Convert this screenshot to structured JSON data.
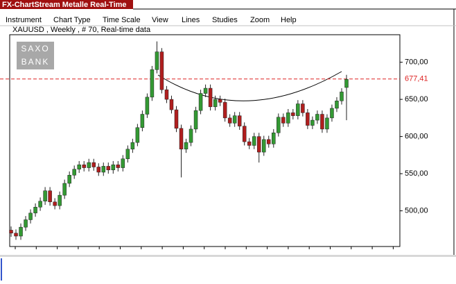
{
  "window": {
    "title": "FX-ChartStream Metalle Real-Time",
    "menu": [
      "Instrument",
      "Chart Type",
      "Time Scale",
      "View",
      "Lines",
      "Studies",
      "Zoom",
      "Help"
    ]
  },
  "logo": [
    "SAXO",
    "BANK"
  ],
  "chart_data": {
    "type": "candlestick",
    "subtitle": "XAUUSD , Weekly , # 70, Real-time data",
    "open": [
      474,
      470,
      466,
      478,
      488,
      497,
      505,
      513,
      527,
      512,
      507,
      521,
      537,
      548,
      556,
      562,
      558,
      565,
      559,
      552,
      560,
      555,
      562,
      558,
      570,
      583,
      592,
      612,
      630,
      653,
      690,
      714,
      663,
      650,
      636,
      611,
      583,
      592,
      610,
      635,
      658,
      665,
      640,
      650,
      646,
      625,
      618,
      628,
      614,
      593,
      588,
      600,
      579,
      596,
      590,
      605,
      626,
      618,
      632,
      628,
      644,
      632,
      615,
      622,
      630,
      610,
      625,
      638,
      648,
      666
    ],
    "high": [
      479,
      475,
      483,
      493,
      502,
      510,
      518,
      532,
      532,
      517,
      526,
      542,
      553,
      561,
      567,
      567,
      570,
      570,
      564,
      565,
      565,
      567,
      567,
      575,
      588,
      597,
      617,
      635,
      658,
      695,
      728,
      719,
      668,
      655,
      641,
      616,
      597,
      615,
      640,
      663,
      670,
      670,
      655,
      655,
      651,
      630,
      633,
      633,
      619,
      598,
      605,
      605,
      601,
      601,
      610,
      631,
      631,
      637,
      637,
      649,
      649,
      637,
      627,
      635,
      635,
      630,
      643,
      653,
      665,
      683
    ],
    "low": [
      465,
      461,
      461,
      473,
      483,
      492,
      500,
      508,
      507,
      502,
      502,
      516,
      532,
      543,
      551,
      553,
      553,
      554,
      547,
      547,
      550,
      550,
      553,
      553,
      565,
      578,
      587,
      607,
      625,
      648,
      685,
      658,
      645,
      631,
      606,
      545,
      578,
      587,
      605,
      630,
      653,
      635,
      635,
      641,
      620,
      613,
      613,
      609,
      588,
      583,
      583,
      565,
      574,
      585,
      585,
      600,
      613,
      613,
      623,
      623,
      627,
      610,
      610,
      617,
      605,
      605,
      620,
      633,
      643,
      622
    ],
    "close": [
      470,
      466,
      478,
      488,
      497,
      505,
      513,
      527,
      512,
      507,
      521,
      537,
      548,
      556,
      562,
      558,
      565,
      559,
      552,
      560,
      555,
      562,
      558,
      570,
      583,
      592,
      612,
      630,
      653,
      690,
      714,
      663,
      650,
      636,
      611,
      583,
      592,
      610,
      635,
      658,
      665,
      640,
      650,
      646,
      625,
      618,
      628,
      614,
      593,
      588,
      600,
      579,
      596,
      590,
      605,
      626,
      618,
      632,
      628,
      644,
      632,
      615,
      622,
      630,
      610,
      625,
      638,
      648,
      660,
      677
    ],
    "up_color": "#339933",
    "down_color": "#b01e1e",
    "ylim": [
      452,
      737
    ],
    "yticks": [
      {
        "value": 500,
        "label": "500,00"
      },
      {
        "value": 550,
        "label": "550,00"
      },
      {
        "value": 600,
        "label": "600,00"
      },
      {
        "value": 650,
        "label": "650,00"
      },
      {
        "value": 700,
        "label": "700,00"
      }
    ],
    "reference_line": {
      "value": 677.41,
      "label": "677,41",
      "color": "#dd2222"
    },
    "grid": false
  }
}
